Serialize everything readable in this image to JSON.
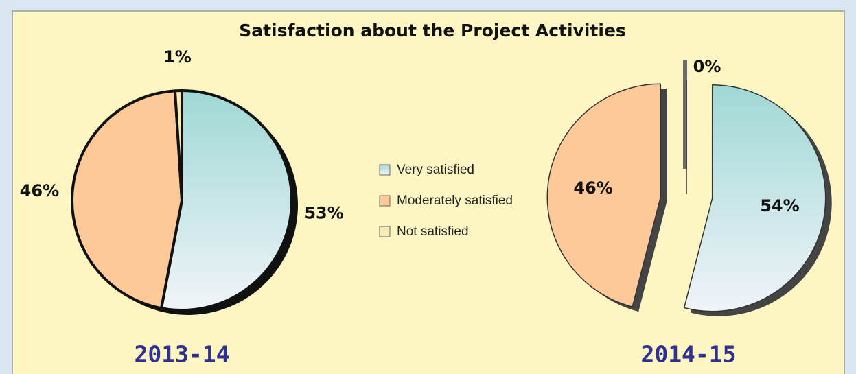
{
  "title": "Satisfaction about the Project Activities",
  "categories": [
    "Very satisfied",
    "Moderately satisfied",
    "Not satisfied"
  ],
  "colors": [
    "#9fd8d5",
    "#fdc999",
    "#f6ebb6"
  ],
  "chart_data": [
    {
      "type": "pie",
      "title": "2013-14",
      "values": [
        53,
        46,
        1
      ],
      "value_labels": [
        "53%",
        "46%",
        "1%"
      ],
      "exploded": false
    },
    {
      "type": "pie",
      "title": "2014-15",
      "values": [
        54,
        46,
        0
      ],
      "value_labels": [
        "54%",
        "46%",
        "0%"
      ],
      "exploded": true
    }
  ]
}
